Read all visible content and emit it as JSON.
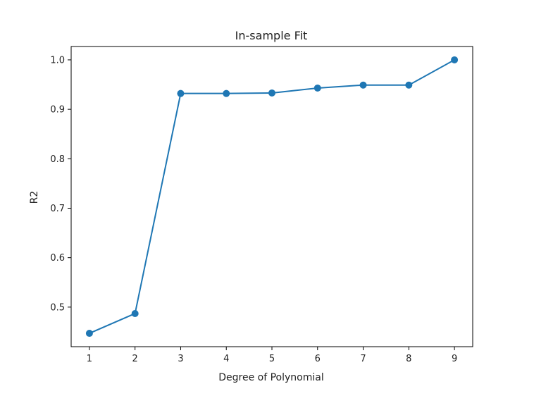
{
  "chart_data": {
    "type": "line",
    "title": "In-sample Fit",
    "xlabel": "Degree of Polynomial",
    "ylabel": "R2",
    "x": [
      1,
      2,
      3,
      4,
      5,
      6,
      7,
      8,
      9
    ],
    "series": [
      {
        "values": [
          0.447,
          0.487,
          0.932,
          0.932,
          0.933,
          0.943,
          0.949,
          0.949,
          1.0
        ],
        "color": "#1f77b4",
        "marker": "circle"
      }
    ],
    "xlim": [
      0.6,
      9.4
    ],
    "ylim": [
      0.42,
      1.027
    ],
    "xticks": [
      1,
      2,
      3,
      4,
      5,
      6,
      7,
      8,
      9
    ],
    "yticks": [
      0.5,
      0.6,
      0.7,
      0.8,
      0.9,
      1.0
    ],
    "ytick_labels": [
      "0.5",
      "0.6",
      "0.7",
      "0.8",
      "0.9",
      "1.0"
    ],
    "grid": false,
    "legend": "none"
  }
}
